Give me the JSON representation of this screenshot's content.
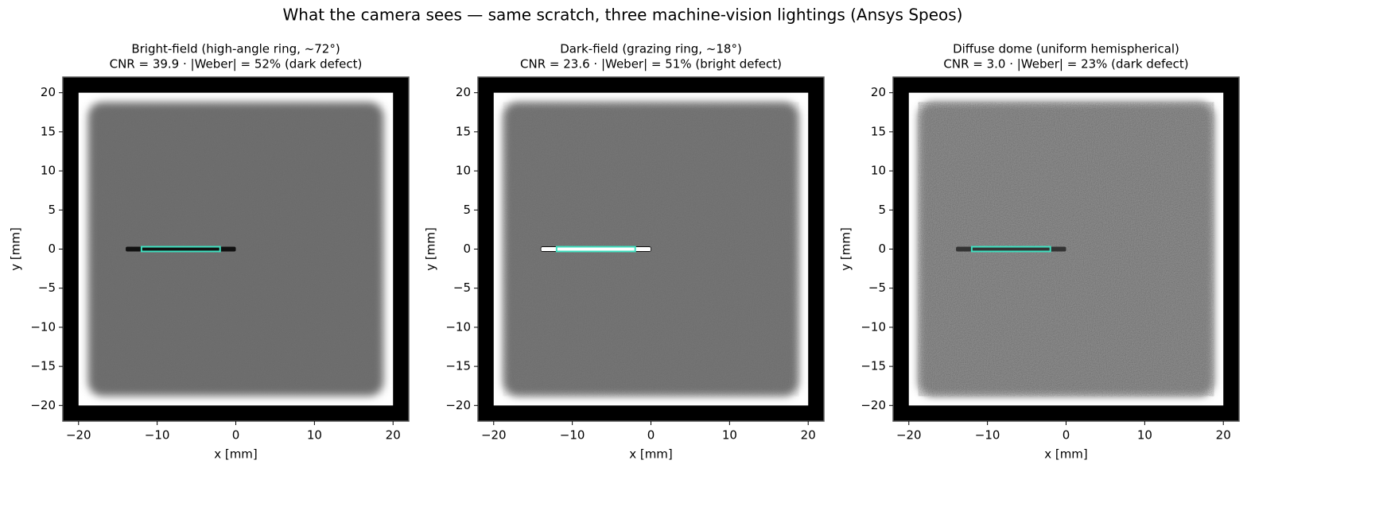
{
  "title": "What the camera sees — same scratch, three machine-vision lightings (Ansys Speos)",
  "chart_data": [
    {
      "type": "image",
      "title_lines": [
        "Bright-field (high-angle ring, ~72°)",
        "CNR = 39.9  ·  |Weber| = 52%  (dark defect)"
      ],
      "xlabel": "x [mm]",
      "ylabel": "y [mm]",
      "xlim": [
        -22,
        22
      ],
      "ylim": [
        -22,
        22
      ],
      "xticks": [
        {
          "value": -20,
          "label": "−20"
        },
        {
          "value": -10,
          "label": "−10"
        },
        0,
        10,
        20
      ],
      "yticks": [
        {
          "value": -20,
          "label": "−20"
        },
        {
          "value": -15,
          "label": "−15"
        },
        {
          "value": -10,
          "label": "−10"
        },
        {
          "value": -5,
          "label": "−5"
        },
        0,
        5,
        10,
        15,
        20
      ],
      "plate_x": [
        -20,
        20
      ],
      "plate_y": [
        -20,
        20
      ],
      "field_color": "#6b6b6b",
      "noise": 0.05,
      "scratch_x": [
        -14,
        0
      ],
      "scratch_color": "#111111",
      "roi_x": [
        -12,
        -2
      ],
      "roi_y": [
        -0.3,
        0.3
      ],
      "roi_color": "#40e0c0"
    },
    {
      "type": "image",
      "title_lines": [
        "Dark-field (grazing ring, ~18°)",
        "CNR = 23.6  ·  |Weber| = 51%  (bright defect)"
      ],
      "xlabel": "x [mm]",
      "ylabel": "y [mm]",
      "xlim": [
        -22,
        22
      ],
      "ylim": [
        -22,
        22
      ],
      "xticks": [
        {
          "value": -20,
          "label": "−20"
        },
        {
          "value": -10,
          "label": "−10"
        },
        0,
        10,
        20
      ],
      "yticks": [
        {
          "value": -20,
          "label": "−20"
        },
        {
          "value": -15,
          "label": "−15"
        },
        {
          "value": -10,
          "label": "−10"
        },
        {
          "value": -5,
          "label": "−5"
        },
        0,
        5,
        10,
        15,
        20
      ],
      "plate_x": [
        -20,
        20
      ],
      "plate_y": [
        -20,
        20
      ],
      "field_color": "#686868",
      "noise": 0.2,
      "scratch_x": [
        -14,
        0
      ],
      "scratch_color": "#ffffff",
      "roi_x": [
        -12,
        -2
      ],
      "roi_y": [
        -0.3,
        0.3
      ],
      "roi_color": "#40e0c0"
    },
    {
      "type": "image",
      "title_lines": [
        "Diffuse dome (uniform hemispherical)",
        "CNR = 3.0  ·  |Weber| = 23%  (dark defect)"
      ],
      "xlabel": "x [mm]",
      "ylabel": "y [mm]",
      "xlim": [
        -22,
        22
      ],
      "ylim": [
        -22,
        22
      ],
      "xticks": [
        {
          "value": -20,
          "label": "−20"
        },
        {
          "value": -10,
          "label": "−10"
        },
        0,
        10,
        20
      ],
      "yticks": [
        {
          "value": -20,
          "label": "−20"
        },
        {
          "value": -15,
          "label": "−15"
        },
        {
          "value": -10,
          "label": "−10"
        },
        {
          "value": -5,
          "label": "−5"
        },
        0,
        5,
        10,
        15,
        20
      ],
      "plate_x": [
        -20,
        20
      ],
      "plate_y": [
        -20,
        20
      ],
      "field_color": "#656565",
      "noise": 0.6,
      "scratch_x": [
        -14,
        0
      ],
      "scratch_color": "#333333",
      "roi_x": [
        -12,
        -2
      ],
      "roi_y": [
        -0.3,
        0.3
      ],
      "roi_color": "#40e0c0"
    }
  ]
}
